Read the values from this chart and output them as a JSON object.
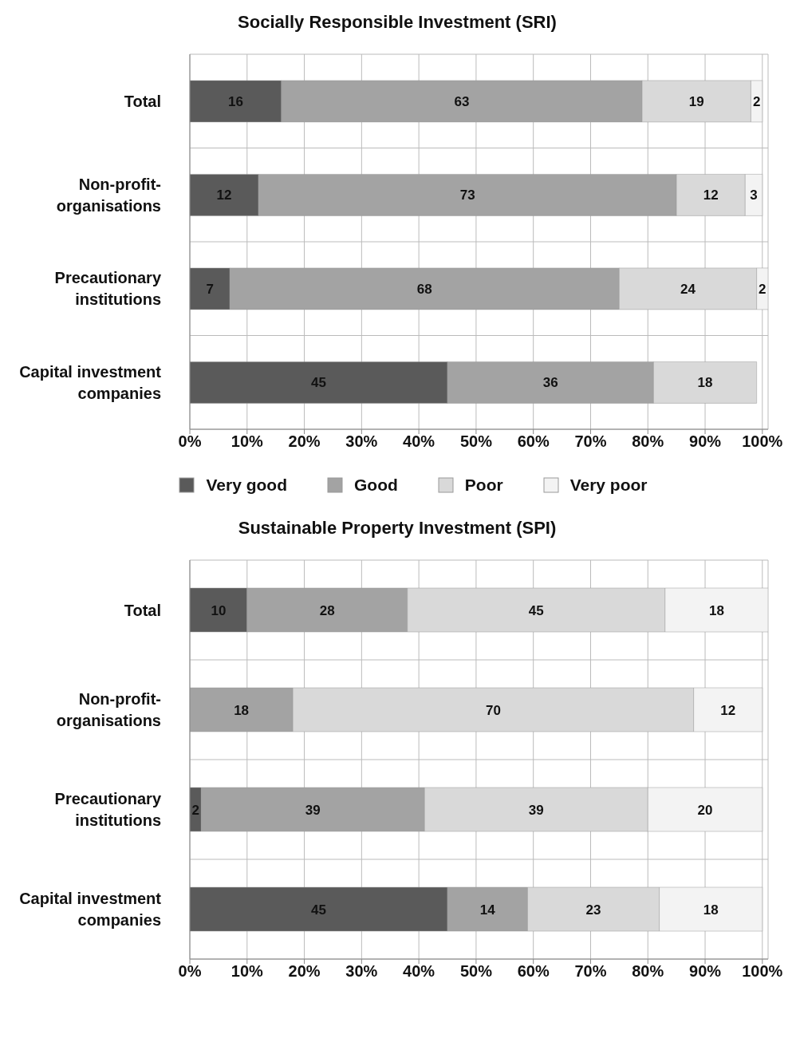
{
  "chart_data": [
    {
      "type": "bar",
      "title": "Socially Responsible Investment (SRI)",
      "orientation": "horizontal",
      "stacked": true,
      "categories": [
        "Total",
        "Non-profit-organisations",
        "Precautionary institutions",
        "Capital investment companies"
      ],
      "series": [
        {
          "name": "Very good",
          "color": "#5a5a5a",
          "values": [
            16,
            12,
            7,
            45
          ]
        },
        {
          "name": "Good",
          "color": "#a3a3a3",
          "values": [
            63,
            73,
            68,
            36
          ]
        },
        {
          "name": "Poor",
          "color": "#d9d9d9",
          "values": [
            19,
            12,
            24,
            18
          ]
        },
        {
          "name": "Very poor",
          "color": "#f3f3f3",
          "values": [
            2,
            3,
            2,
            null
          ]
        }
      ],
      "xlim": [
        0,
        101
      ],
      "xticks": [
        {
          "value": 0,
          "label": "0%"
        },
        {
          "value": 10,
          "label": "10%"
        },
        {
          "value": 20,
          "label": "20%"
        },
        {
          "value": 30,
          "label": "30%"
        },
        {
          "value": 40,
          "label": "40%"
        },
        {
          "value": 50,
          "label": "50%"
        },
        {
          "value": 60,
          "label": "60%"
        },
        {
          "value": 70,
          "label": "70%"
        },
        {
          "value": 80,
          "label": "80%"
        },
        {
          "value": 90,
          "label": "90%"
        },
        {
          "value": 100,
          "label": "100%"
        }
      ],
      "grid": true,
      "data_labels": true,
      "legend": "bottom"
    },
    {
      "type": "bar",
      "title": "Sustainable Property Investment (SPI)",
      "orientation": "horizontal",
      "stacked": true,
      "categories": [
        "Total",
        "Non-profit-organisations",
        "Precautionary institutions",
        "Capital investment companies"
      ],
      "series": [
        {
          "color": "#5a5a5a",
          "values": [
            10,
            null,
            2,
            45
          ]
        },
        {
          "color": "#a3a3a3",
          "values": [
            28,
            18,
            39,
            14
          ]
        },
        {
          "color": "#d9d9d9",
          "values": [
            45,
            70,
            39,
            23
          ]
        },
        {
          "color": "#f3f3f3",
          "values": [
            18,
            12,
            20,
            18
          ]
        }
      ],
      "xlim": [
        0,
        101
      ],
      "xticks": [
        {
          "value": 0,
          "label": "0%"
        },
        {
          "value": 10,
          "label": "10%"
        },
        {
          "value": 20,
          "label": "20%"
        },
        {
          "value": 30,
          "label": "30%"
        },
        {
          "value": 40,
          "label": "40%"
        },
        {
          "value": 50,
          "label": "50%"
        },
        {
          "value": 60,
          "label": "60%"
        },
        {
          "value": 70,
          "label": "70%"
        },
        {
          "value": 80,
          "label": "80%"
        },
        {
          "value": 90,
          "label": "90%"
        },
        {
          "value": 100,
          "label": "100%"
        }
      ],
      "grid": true,
      "data_labels": true
    }
  ]
}
